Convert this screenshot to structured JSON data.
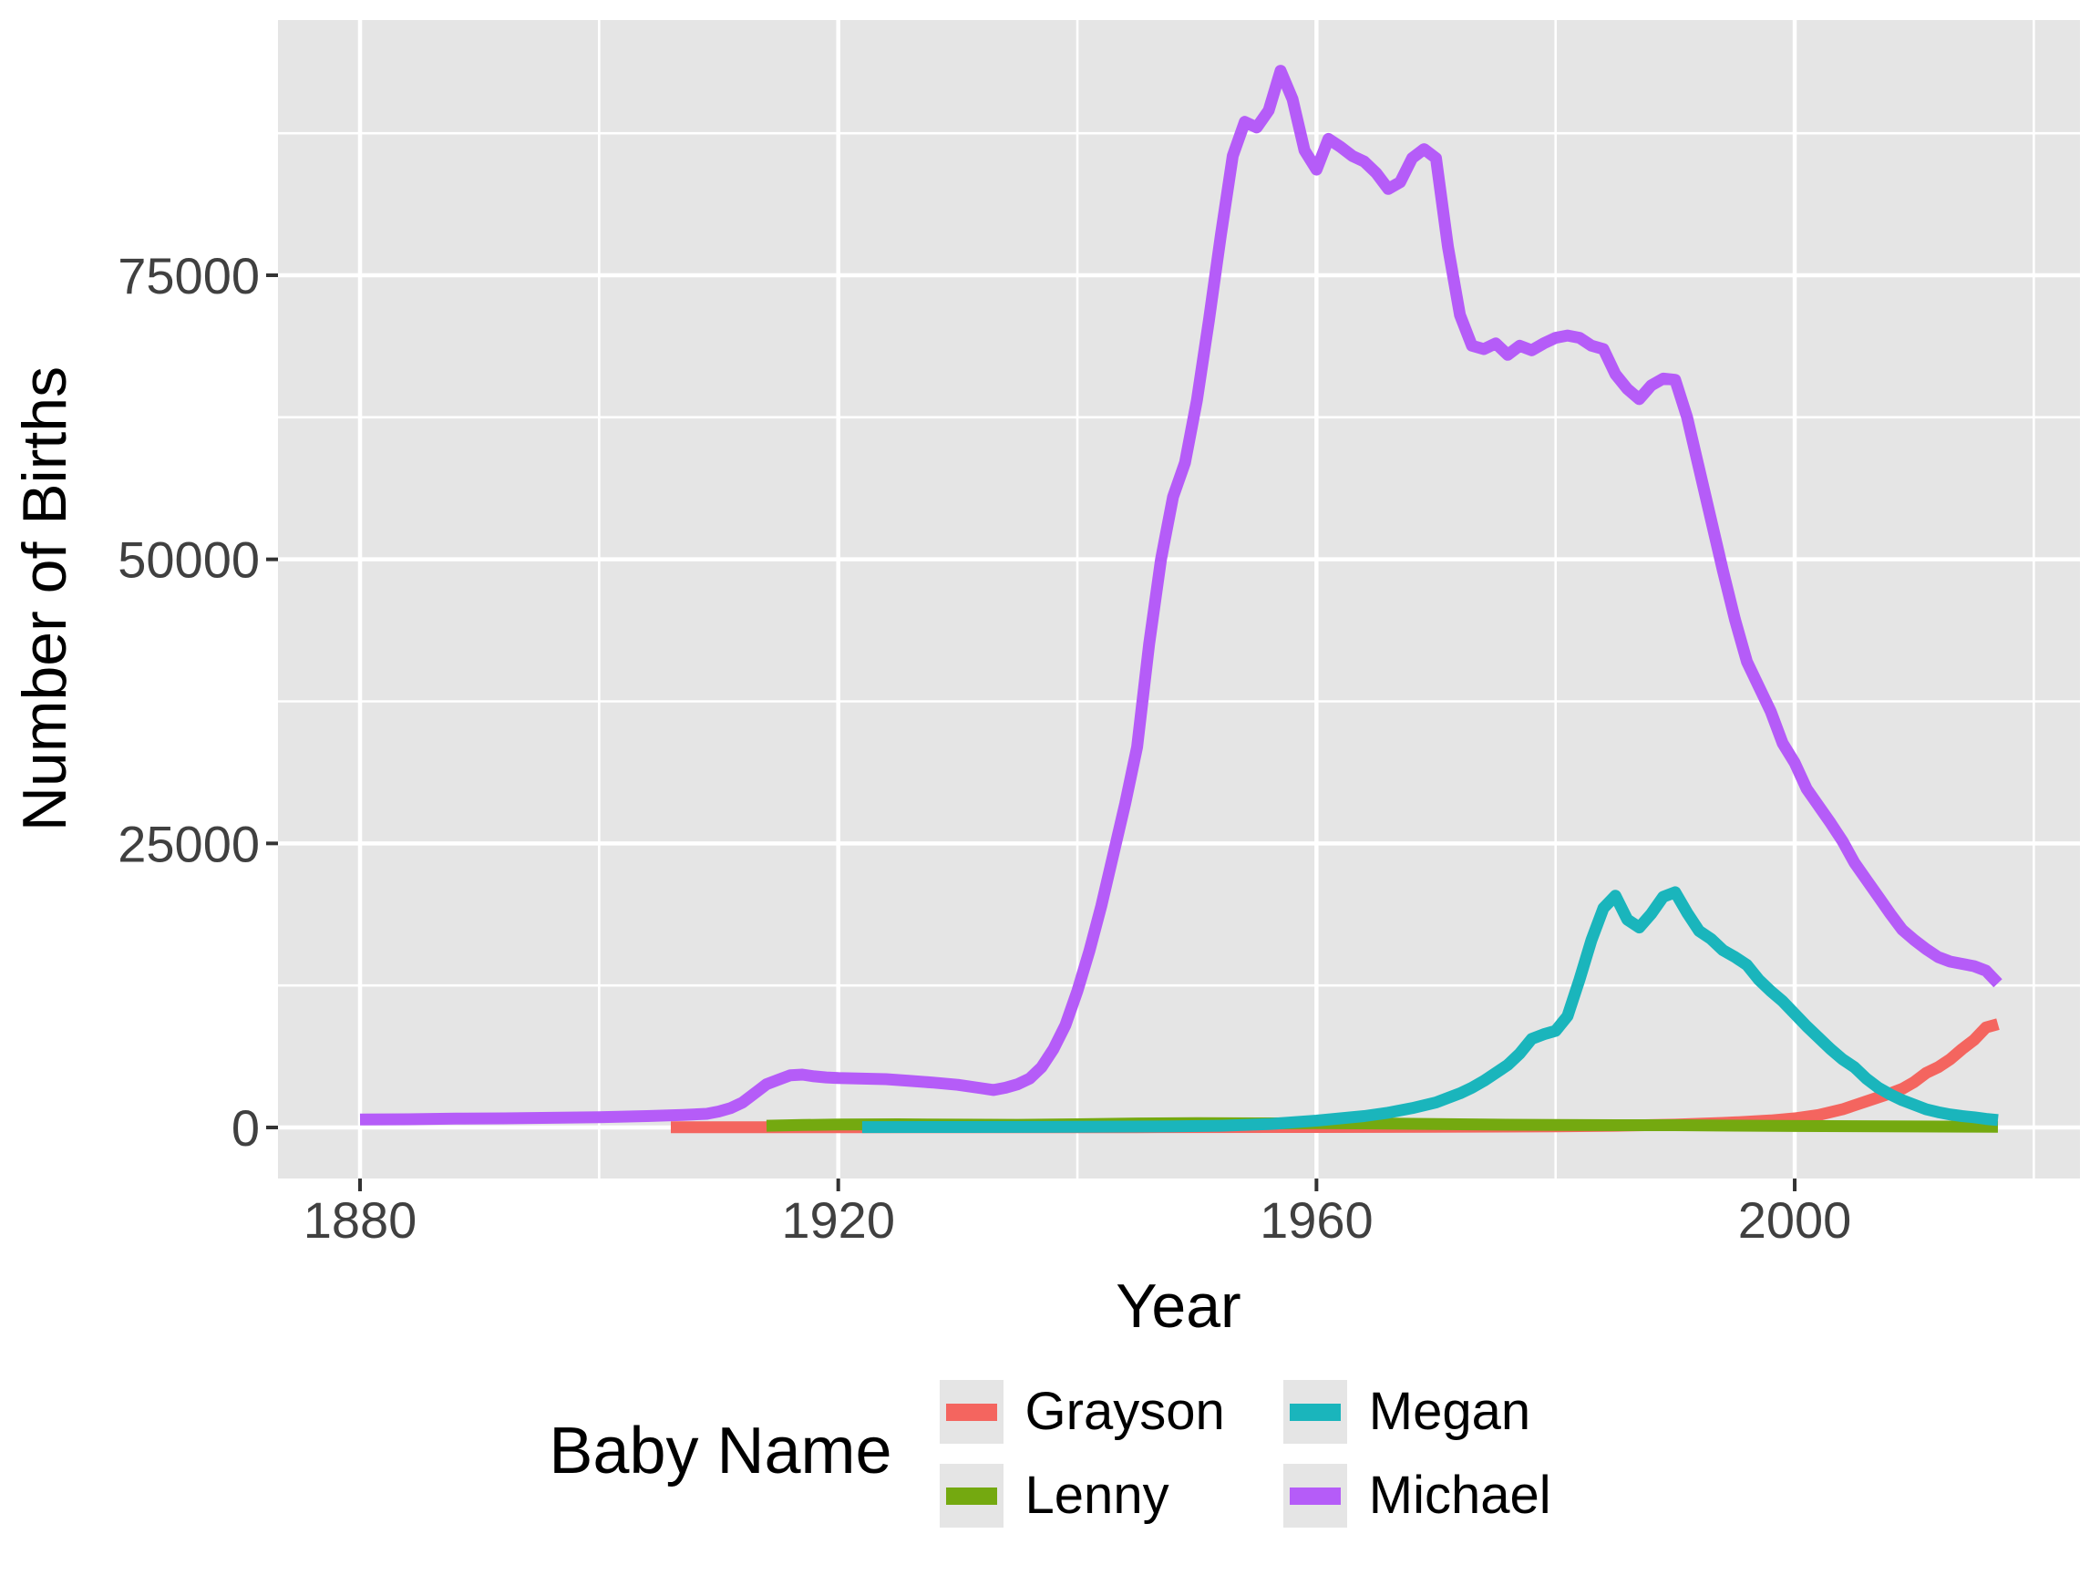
{
  "figure": {
    "x_axis_title": "Year",
    "y_axis_title": "Number of Births",
    "panel_bg": "#E5E5E5",
    "grid_color": "#FFFFFF",
    "tick_mark_color": "#333333",
    "tick_text_color": "#404040",
    "key_box_bg": "#E5E5E5"
  },
  "legend": {
    "title": "Baby Name",
    "items": [
      {
        "label": "Grayson",
        "color": "#F4655F"
      },
      {
        "label": "Lenny",
        "color": "#74A910"
      },
      {
        "label": "Megan",
        "color": "#1AB5BC"
      },
      {
        "label": "Michael",
        "color": "#B55CF8"
      }
    ]
  },
  "chart_data": {
    "type": "line",
    "title": "",
    "xlabel": "Year",
    "ylabel": "Number of Births",
    "legend_title": "Baby Name",
    "legend_position": "bottom",
    "grid": true,
    "xlim": [
      1873,
      2024
    ],
    "ylim": [
      -4500,
      97500
    ],
    "x_ticks": [
      1880,
      1920,
      1960,
      2000
    ],
    "x_minor_ticks": [
      1900,
      1940,
      1980,
      2020
    ],
    "y_ticks": [
      0,
      25000,
      50000,
      75000
    ],
    "y_minor_ticks": [
      12500,
      37500,
      62500,
      87500
    ],
    "series": [
      {
        "name": "Grayson",
        "color": "#F4655F",
        "points": [
          [
            1906,
            20
          ],
          [
            1915,
            15
          ],
          [
            1930,
            15
          ],
          [
            1945,
            25
          ],
          [
            1960,
            40
          ],
          [
            1970,
            60
          ],
          [
            1980,
            100
          ],
          [
            1985,
            150
          ],
          [
            1990,
            250
          ],
          [
            1994,
            400
          ],
          [
            1996,
            500
          ],
          [
            1998,
            620
          ],
          [
            2000,
            800
          ],
          [
            2002,
            1100
          ],
          [
            2004,
            1600
          ],
          [
            2006,
            2300
          ],
          [
            2008,
            3000
          ],
          [
            2009,
            3400
          ],
          [
            2010,
            4000
          ],
          [
            2011,
            4800
          ],
          [
            2012,
            5300
          ],
          [
            2013,
            6000
          ],
          [
            2014,
            6900
          ],
          [
            2015,
            7700
          ],
          [
            2016,
            8800
          ],
          [
            2017,
            9100
          ]
        ]
      },
      {
        "name": "Lenny",
        "color": "#74A910",
        "points": [
          [
            1914,
            150
          ],
          [
            1917,
            220
          ],
          [
            1920,
            260
          ],
          [
            1925,
            280
          ],
          [
            1930,
            250
          ],
          [
            1935,
            230
          ],
          [
            1940,
            280
          ],
          [
            1945,
            350
          ],
          [
            1950,
            380
          ],
          [
            1955,
            360
          ],
          [
            1960,
            380
          ],
          [
            1965,
            350
          ],
          [
            1970,
            300
          ],
          [
            1975,
            250
          ],
          [
            1980,
            220
          ],
          [
            1985,
            200
          ],
          [
            1990,
            200
          ],
          [
            1995,
            160
          ],
          [
            2000,
            130
          ],
          [
            2005,
            110
          ],
          [
            2010,
            90
          ],
          [
            2015,
            70
          ],
          [
            2017,
            60
          ]
        ]
      },
      {
        "name": "Megan",
        "color": "#1AB5BC",
        "points": [
          [
            1922,
            30
          ],
          [
            1930,
            40
          ],
          [
            1940,
            60
          ],
          [
            1948,
            100
          ],
          [
            1952,
            150
          ],
          [
            1956,
            300
          ],
          [
            1960,
            600
          ],
          [
            1962,
            800
          ],
          [
            1964,
            1000
          ],
          [
            1966,
            1300
          ],
          [
            1968,
            1700
          ],
          [
            1970,
            2200
          ],
          [
            1971,
            2600
          ],
          [
            1972,
            3000
          ],
          [
            1973,
            3500
          ],
          [
            1974,
            4100
          ],
          [
            1975,
            4800
          ],
          [
            1976,
            5500
          ],
          [
            1977,
            6500
          ],
          [
            1978,
            7800
          ],
          [
            1979,
            8200
          ],
          [
            1980,
            8500
          ],
          [
            1981,
            9800
          ],
          [
            1982,
            13000
          ],
          [
            1983,
            16500
          ],
          [
            1984,
            19300
          ],
          [
            1985,
            20400
          ],
          [
            1986,
            18300
          ],
          [
            1987,
            17600
          ],
          [
            1988,
            18800
          ],
          [
            1989,
            20300
          ],
          [
            1990,
            20700
          ],
          [
            1991,
            18900
          ],
          [
            1992,
            17300
          ],
          [
            1993,
            16600
          ],
          [
            1994,
            15600
          ],
          [
            1995,
            15000
          ],
          [
            1996,
            14300
          ],
          [
            1997,
            13000
          ],
          [
            1998,
            12000
          ],
          [
            1999,
            11100
          ],
          [
            2000,
            10000
          ],
          [
            2001,
            8900
          ],
          [
            2002,
            7900
          ],
          [
            2003,
            6900
          ],
          [
            2004,
            6000
          ],
          [
            2005,
            5300
          ],
          [
            2006,
            4300
          ],
          [
            2007,
            3500
          ],
          [
            2008,
            2900
          ],
          [
            2009,
            2400
          ],
          [
            2010,
            2000
          ],
          [
            2011,
            1600
          ],
          [
            2012,
            1350
          ],
          [
            2013,
            1150
          ],
          [
            2014,
            1000
          ],
          [
            2015,
            900
          ],
          [
            2016,
            750
          ],
          [
            2017,
            650
          ]
        ]
      },
      {
        "name": "Michael",
        "color": "#B55CF8",
        "points": [
          [
            1880,
            700
          ],
          [
            1884,
            720
          ],
          [
            1888,
            780
          ],
          [
            1892,
            800
          ],
          [
            1896,
            850
          ],
          [
            1900,
            900
          ],
          [
            1904,
            1000
          ],
          [
            1907,
            1100
          ],
          [
            1909,
            1200
          ],
          [
            1910,
            1400
          ],
          [
            1911,
            1700
          ],
          [
            1912,
            2200
          ],
          [
            1913,
            3000
          ],
          [
            1914,
            3800
          ],
          [
            1915,
            4200
          ],
          [
            1916,
            4600
          ],
          [
            1917,
            4650
          ],
          [
            1918,
            4500
          ],
          [
            1919,
            4400
          ],
          [
            1920,
            4350
          ],
          [
            1922,
            4300
          ],
          [
            1924,
            4250
          ],
          [
            1926,
            4100
          ],
          [
            1928,
            3950
          ],
          [
            1930,
            3750
          ],
          [
            1932,
            3450
          ],
          [
            1933,
            3300
          ],
          [
            1934,
            3500
          ],
          [
            1935,
            3800
          ],
          [
            1936,
            4300
          ],
          [
            1937,
            5300
          ],
          [
            1938,
            6900
          ],
          [
            1939,
            9000
          ],
          [
            1940,
            12000
          ],
          [
            1941,
            15500
          ],
          [
            1942,
            19500
          ],
          [
            1943,
            24000
          ],
          [
            1944,
            28500
          ],
          [
            1945,
            33500
          ],
          [
            1946,
            42500
          ],
          [
            1947,
            50000
          ],
          [
            1948,
            55500
          ],
          [
            1949,
            58500
          ],
          [
            1950,
            64000
          ],
          [
            1951,
            71000
          ],
          [
            1952,
            78500
          ],
          [
            1953,
            85500
          ],
          [
            1954,
            88500
          ],
          [
            1955,
            88000
          ],
          [
            1956,
            89500
          ],
          [
            1957,
            93000
          ],
          [
            1958,
            90500
          ],
          [
            1959,
            86000
          ],
          [
            1960,
            84300
          ],
          [
            1961,
            87000
          ],
          [
            1962,
            86300
          ],
          [
            1963,
            85500
          ],
          [
            1964,
            85000
          ],
          [
            1965,
            84000
          ],
          [
            1966,
            82600
          ],
          [
            1967,
            83200
          ],
          [
            1968,
            85300
          ],
          [
            1969,
            86100
          ],
          [
            1970,
            85300
          ],
          [
            1971,
            77500
          ],
          [
            1972,
            71500
          ],
          [
            1973,
            68800
          ],
          [
            1974,
            68500
          ],
          [
            1975,
            69000
          ],
          [
            1976,
            68000
          ],
          [
            1977,
            68800
          ],
          [
            1978,
            68400
          ],
          [
            1979,
            69000
          ],
          [
            1980,
            69500
          ],
          [
            1981,
            69700
          ],
          [
            1982,
            69500
          ],
          [
            1983,
            68800
          ],
          [
            1984,
            68500
          ],
          [
            1985,
            66300
          ],
          [
            1986,
            65000
          ],
          [
            1987,
            64100
          ],
          [
            1988,
            65300
          ],
          [
            1989,
            65900
          ],
          [
            1990,
            65800
          ],
          [
            1991,
            62500
          ],
          [
            1992,
            58000
          ],
          [
            1993,
            53500
          ],
          [
            1994,
            49000
          ],
          [
            1995,
            44700
          ],
          [
            1996,
            41000
          ],
          [
            1997,
            38800
          ],
          [
            1998,
            36600
          ],
          [
            1999,
            33800
          ],
          [
            2000,
            32100
          ],
          [
            2001,
            29800
          ],
          [
            2002,
            28300
          ],
          [
            2003,
            26800
          ],
          [
            2004,
            25200
          ],
          [
            2005,
            23300
          ],
          [
            2006,
            21800
          ],
          [
            2007,
            20300
          ],
          [
            2008,
            18800
          ],
          [
            2009,
            17400
          ],
          [
            2010,
            16500
          ],
          [
            2011,
            15700
          ],
          [
            2012,
            15000
          ],
          [
            2013,
            14600
          ],
          [
            2014,
            14400
          ],
          [
            2015,
            14200
          ],
          [
            2016,
            13800
          ],
          [
            2017,
            12700
          ]
        ]
      }
    ]
  }
}
